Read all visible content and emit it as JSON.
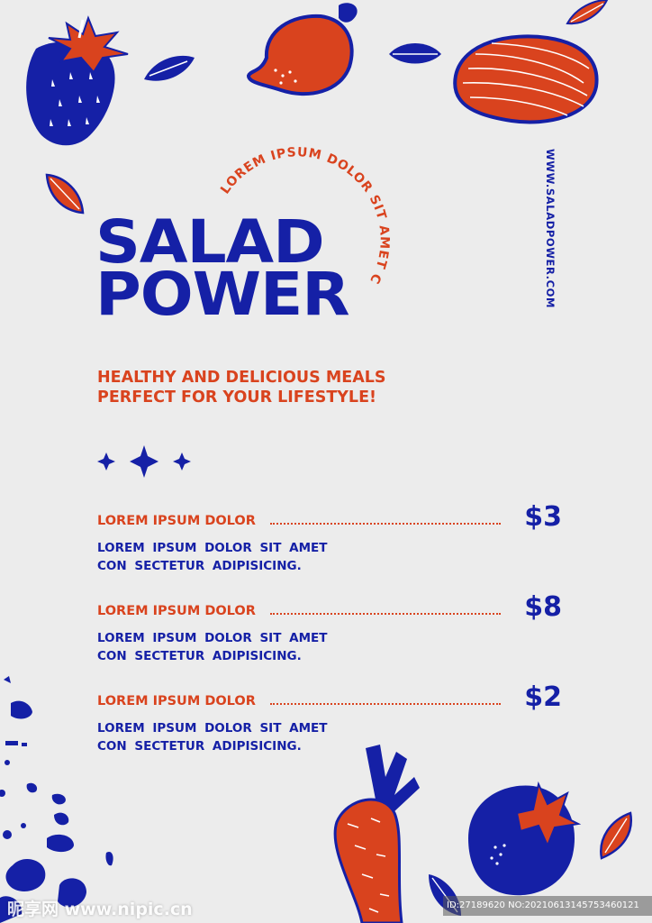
{
  "brand": {
    "arc_text": "LOREM IPSUM DOLOR SIT AMET CO",
    "title_line1": "SALAD",
    "title_line2": "POWER",
    "website": "WWW.SALADPOWER.COM",
    "tagline_line1": "HEALTHY AND DELICIOUS MEALS",
    "tagline_line2": "PERFECT FOR YOUR LIFESTYLE!"
  },
  "menu": {
    "items": [
      {
        "title": "LOREM IPSUM DOLOR",
        "price": "$3",
        "desc_line1": "LOREM IPSUM DOLOR SIT AMET",
        "desc_line2": "CON SECTETUR ADIPISICING."
      },
      {
        "title": "LOREM IPSUM DOLOR",
        "price": "$8",
        "desc_line1": "LOREM IPSUM DOLOR SIT AMET",
        "desc_line2": "CON SECTETUR ADIPISICING."
      },
      {
        "title": "LOREM IPSUM DOLOR",
        "price": "$2",
        "desc_line1": "LOREM IPSUM DOLOR SIT AMET",
        "desc_line2": "CON SECTETUR ADIPISICING."
      }
    ]
  },
  "watermark": {
    "logo": "昵享网 www.nipic.cn",
    "id": "ID:27189620 NO:20210613145753460121"
  },
  "colors": {
    "background": "#ececec",
    "blue": "#1520a6",
    "orange": "#d9431e"
  },
  "icons": [
    "strawberry-icon",
    "lemon-icon",
    "squash-icon",
    "leaf-icon",
    "sparkle-icon",
    "carrot-icon",
    "tomato-icon",
    "paint-splatter"
  ]
}
